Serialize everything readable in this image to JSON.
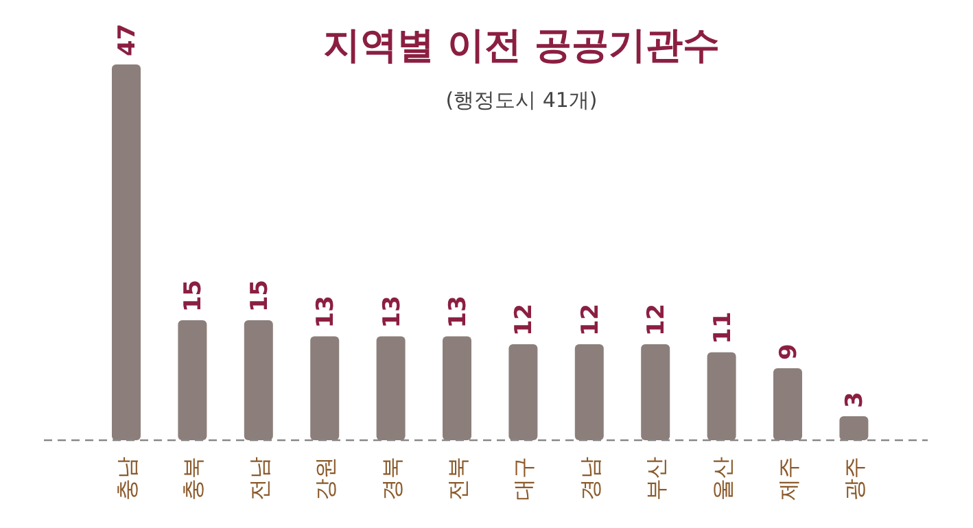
{
  "chart_data": {
    "type": "bar",
    "title": "지역별 이전 공공기관수",
    "subtitle": "(행정도시 41개)",
    "categories": [
      "충남",
      "충북",
      "전남",
      "강원",
      "경북",
      "전북",
      "대구",
      "경남",
      "부산",
      "울산",
      "제주",
      "광주"
    ],
    "values": [
      47,
      15,
      15,
      13,
      13,
      13,
      12,
      12,
      12,
      11,
      9,
      3
    ],
    "color": "#8c7f7b",
    "data_labels": true
  }
}
